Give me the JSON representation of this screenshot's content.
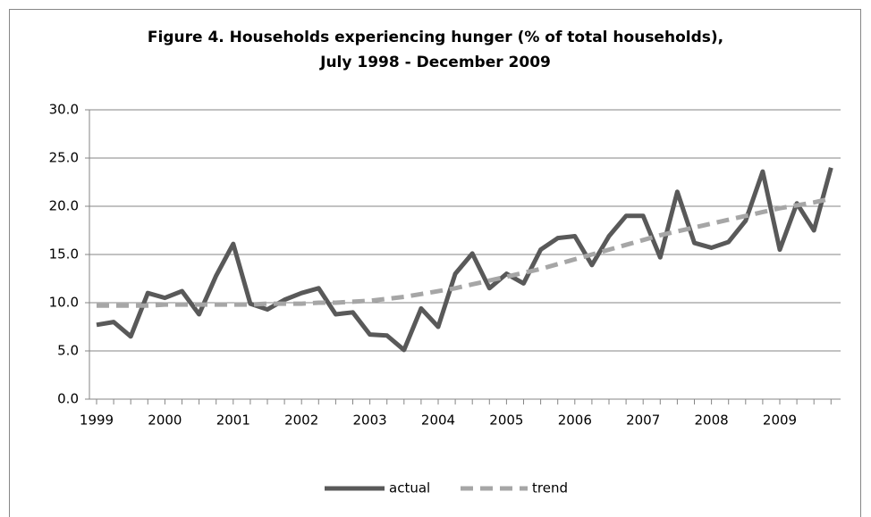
{
  "chart_data": {
    "type": "line",
    "title": "Figure 4. Households experiencing hunger (% of total households),",
    "subtitle": "July 1998 - December 2009",
    "categories": [
      "1999",
      null,
      null,
      null,
      "2000",
      null,
      null,
      null,
      "2001",
      null,
      null,
      null,
      "2002",
      null,
      null,
      null,
      "2003",
      null,
      null,
      null,
      "2004",
      null,
      null,
      null,
      "2005",
      null,
      null,
      null,
      "2006",
      null,
      null,
      null,
      "2007",
      null,
      null,
      null,
      "2008",
      null,
      null,
      null,
      "2009",
      null,
      null,
      null
    ],
    "series": [
      {
        "name": "actual",
        "color": "#595959",
        "dashed": false,
        "values": [
          7.7,
          8.0,
          6.5,
          11.0,
          10.5,
          11.2,
          8.8,
          12.8,
          16.1,
          9.9,
          9.3,
          10.3,
          11.0,
          11.5,
          8.8,
          9.0,
          6.7,
          6.6,
          5.1,
          9.4,
          7.5,
          13.0,
          15.1,
          11.5,
          13.0,
          12.0,
          15.5,
          16.7,
          16.9,
          13.9,
          16.9,
          19.0,
          19.0,
          14.7,
          21.5,
          16.2,
          15.7,
          16.3,
          18.5,
          23.6,
          15.5,
          20.3,
          17.5,
          24.0
        ]
      },
      {
        "name": "trend",
        "color": "#a6a6a6",
        "dashed": true,
        "values": [
          9.7,
          9.7,
          9.7,
          9.7,
          9.8,
          9.8,
          9.8,
          9.8,
          9.8,
          9.8,
          9.9,
          9.9,
          9.9,
          10.0,
          10.0,
          10.1,
          10.2,
          10.4,
          10.6,
          10.9,
          11.2,
          11.5,
          11.9,
          12.3,
          12.7,
          13.1,
          13.5,
          14.0,
          14.5,
          15.0,
          15.5,
          16.0,
          16.5,
          17.0,
          17.4,
          17.8,
          18.2,
          18.6,
          19.0,
          19.4,
          19.8,
          20.1,
          20.4,
          20.8
        ]
      }
    ],
    "ylim": [
      0,
      30
    ],
    "yticks": [
      {
        "value": 0,
        "label": "0.0"
      },
      {
        "value": 5,
        "label": "5.0"
      },
      {
        "value": 10,
        "label": "10.0"
      },
      {
        "value": 15,
        "label": "15.0"
      },
      {
        "value": 20,
        "label": "20.0"
      },
      {
        "value": 25,
        "label": "25.0"
      },
      {
        "value": 30,
        "label": "30.0"
      }
    ],
    "grid": true,
    "legend": "bottom"
  }
}
